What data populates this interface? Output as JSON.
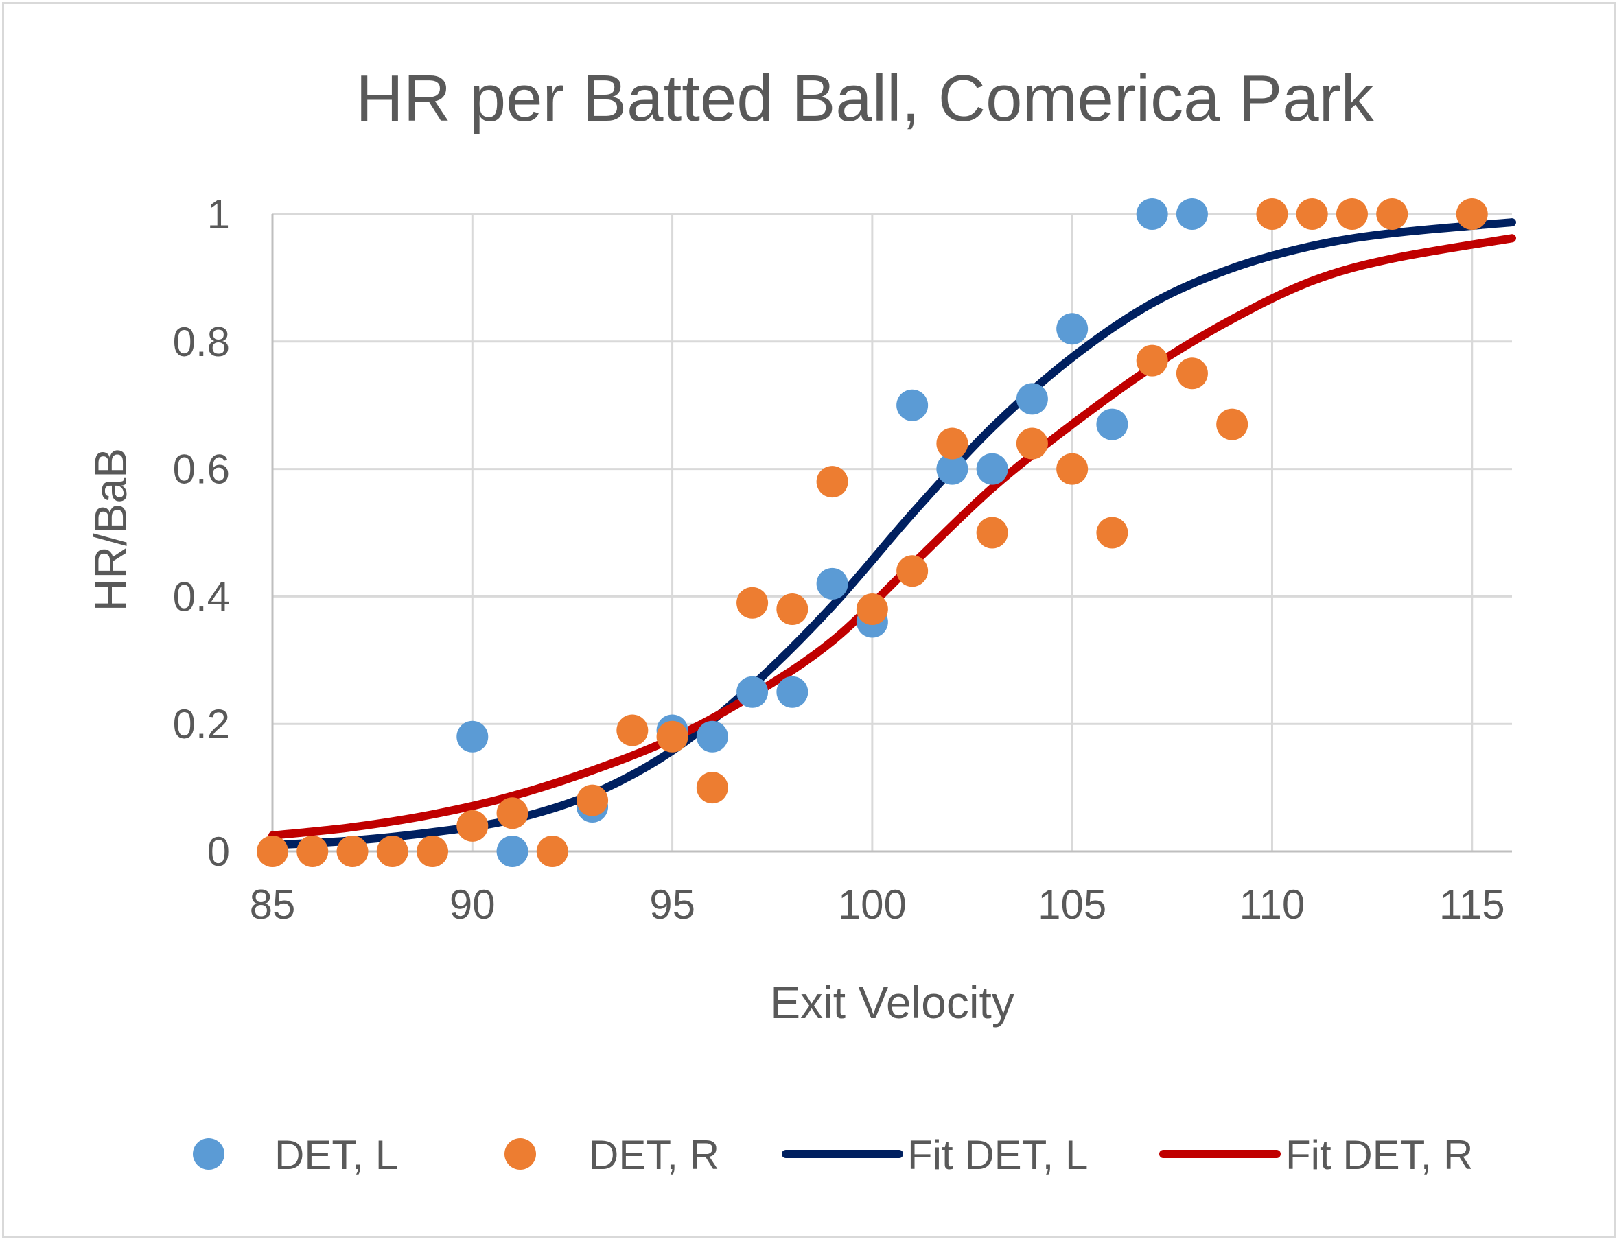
{
  "chart_data": {
    "type": "scatter",
    "title": "HR per Batted Ball, Comerica Park",
    "xlabel": "Exit Velocity",
    "ylabel": "HR/BaB",
    "xlim": [
      85,
      116
    ],
    "ylim": [
      0,
      1
    ],
    "x_ticks": [
      "85",
      "90",
      "95",
      "100",
      "105",
      "110",
      "115"
    ],
    "y_ticks": [
      "0",
      "0.2",
      "0.4",
      "0.6",
      "0.8",
      "1"
    ],
    "grid": true,
    "legend_position": "bottom",
    "series": [
      {
        "name": "DET, L",
        "kind": "scatter",
        "color": "#5b9bd5",
        "points": [
          [
            90,
            0.18
          ],
          [
            91,
            0.0
          ],
          [
            93,
            0.07
          ],
          [
            95,
            0.19
          ],
          [
            96,
            0.18
          ],
          [
            97,
            0.25
          ],
          [
            98,
            0.25
          ],
          [
            99,
            0.42
          ],
          [
            100,
            0.36
          ],
          [
            101,
            0.7
          ],
          [
            102,
            0.6
          ],
          [
            103,
            0.6
          ],
          [
            104,
            0.71
          ],
          [
            105,
            0.82
          ],
          [
            106,
            0.67
          ],
          [
            107,
            1.0
          ],
          [
            108,
            1.0
          ]
        ]
      },
      {
        "name": "DET, R",
        "kind": "scatter",
        "color": "#ed7d31",
        "points": [
          [
            85,
            0.0
          ],
          [
            86,
            0.0
          ],
          [
            87,
            0.0
          ],
          [
            88,
            0.0
          ],
          [
            89,
            0.0
          ],
          [
            90,
            0.04
          ],
          [
            91,
            0.06
          ],
          [
            92,
            0.0
          ],
          [
            93,
            0.08
          ],
          [
            94,
            0.19
          ],
          [
            95,
            0.18
          ],
          [
            96,
            0.1
          ],
          [
            97,
            0.39
          ],
          [
            98,
            0.38
          ],
          [
            99,
            0.58
          ],
          [
            100,
            0.38
          ],
          [
            101,
            0.44
          ],
          [
            102,
            0.64
          ],
          [
            103,
            0.5
          ],
          [
            104,
            0.64
          ],
          [
            105,
            0.6
          ],
          [
            106,
            0.5
          ],
          [
            107,
            0.77
          ],
          [
            108,
            0.75
          ],
          [
            109,
            0.67
          ],
          [
            110,
            1.0
          ],
          [
            111,
            1.0
          ],
          [
            112,
            1.0
          ],
          [
            113,
            1.0
          ],
          [
            115,
            1.0
          ]
        ]
      },
      {
        "name": "Fit DET, L",
        "kind": "line",
        "color": "#002060",
        "points": [
          [
            85,
            0.01
          ],
          [
            87,
            0.017
          ],
          [
            89,
            0.03
          ],
          [
            91,
            0.05
          ],
          [
            93,
            0.09
          ],
          [
            95,
            0.158
          ],
          [
            97,
            0.26
          ],
          [
            99,
            0.385
          ],
          [
            101,
            0.53
          ],
          [
            103,
            0.665
          ],
          [
            105,
            0.775
          ],
          [
            107,
            0.86
          ],
          [
            109,
            0.915
          ],
          [
            111,
            0.95
          ],
          [
            113,
            0.97
          ],
          [
            116,
            0.987
          ]
        ]
      },
      {
        "name": "Fit DET, R",
        "kind": "line",
        "color": "#c00000",
        "points": [
          [
            85,
            0.025
          ],
          [
            87,
            0.038
          ],
          [
            89,
            0.058
          ],
          [
            91,
            0.087
          ],
          [
            93,
            0.127
          ],
          [
            95,
            0.177
          ],
          [
            97,
            0.245
          ],
          [
            99,
            0.33
          ],
          [
            101,
            0.45
          ],
          [
            103,
            0.57
          ],
          [
            105,
            0.67
          ],
          [
            107,
            0.76
          ],
          [
            109,
            0.835
          ],
          [
            111,
            0.895
          ],
          [
            113,
            0.93
          ],
          [
            116,
            0.962
          ]
        ]
      }
    ]
  }
}
